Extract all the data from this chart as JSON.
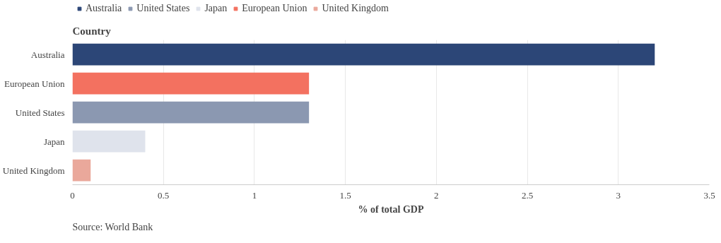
{
  "chart_data": {
    "type": "bar",
    "orientation": "horizontal",
    "ylabel": "Country",
    "xlabel": "% of total GDP",
    "categories": [
      "Australia",
      "European Union",
      "United States",
      "Japan",
      "United Kingdom"
    ],
    "series": [
      {
        "name": "Australia",
        "color": "#2c4677",
        "values": [
          3.2,
          null,
          null,
          null,
          null
        ]
      },
      {
        "name": "United States",
        "color": "#8b98b1",
        "values": [
          null,
          null,
          1.3,
          null,
          null
        ]
      },
      {
        "name": "Japan",
        "color": "#dfe3ec",
        "values": [
          null,
          null,
          null,
          0.4,
          null
        ]
      },
      {
        "name": "European Union",
        "color": "#f37160",
        "values": [
          null,
          1.3,
          null,
          null,
          null
        ]
      },
      {
        "name": "United Kingdom",
        "color": "#eaa89b",
        "values": [
          null,
          null,
          null,
          null,
          0.1
        ]
      }
    ],
    "xlim": [
      0,
      3.5
    ],
    "xticks": [
      0,
      0.5,
      1,
      1.5,
      2,
      2.5,
      3,
      3.5
    ],
    "grid": "x",
    "legend": "top left",
    "annotations": [
      "Source: World Bank"
    ]
  }
}
